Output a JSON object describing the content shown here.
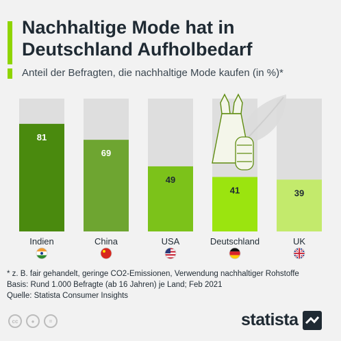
{
  "title": "Nachhaltige Mode hat in Deutschland Aufholbedarf",
  "subtitle": "Anteil der Befragten, die nachhaltige Mode kaufen (in %)*",
  "chart_data": {
    "type": "bar",
    "categories": [
      "Indien",
      "China",
      "USA",
      "Deutschland",
      "UK"
    ],
    "values": [
      81,
      69,
      49,
      41,
      39
    ],
    "ylim": [
      0,
      100
    ],
    "bar_colors": [
      "#4a8a0e",
      "#6ea531",
      "#7cc21a",
      "#9be40f",
      "#c3ea6c"
    ],
    "track_color": "#dedede",
    "label_colors": [
      "#ffffff",
      "#ffffff",
      "#1f2a33",
      "#1f2a33",
      "#1f2a33"
    ]
  },
  "flags": [
    "india-flag-icon",
    "china-flag-icon",
    "usa-flag-icon",
    "germany-flag-icon",
    "uk-flag-icon"
  ],
  "footnotes": {
    "note": "* z. B. fair gehandelt, geringe CO2-Emissionen, Verwendung nachhaltiger Rohstoffe",
    "basis": "Basis: Rund 1.000 Befragte (ab 16 Jahren) je Land; Feb 2021",
    "source": "Quelle: Statista Consumer Insights"
  },
  "brand": {
    "name": "statista"
  },
  "license_icons": [
    "creative-commons-icon",
    "attribution-icon",
    "no-derivatives-icon"
  ]
}
